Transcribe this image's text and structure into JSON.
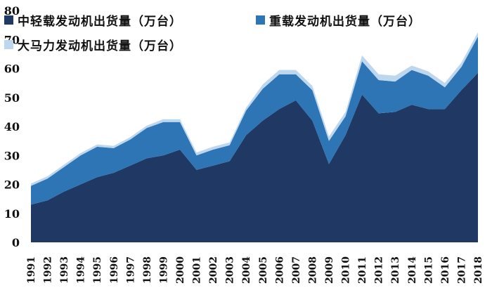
{
  "chart_data": {
    "type": "area",
    "stacked": true,
    "title": "",
    "xlabel": "",
    "ylabel": "",
    "ylim": [
      0,
      80
    ],
    "yticks": [
      0,
      10,
      20,
      30,
      40,
      50,
      60,
      70,
      80
    ],
    "grid": false,
    "legend_position": "top",
    "categories": [
      "1991",
      "1992",
      "1993",
      "1994",
      "1995",
      "1996",
      "1997",
      "1998",
      "1999",
      "2000",
      "2001",
      "2002",
      "2003",
      "2004",
      "2005",
      "2006",
      "2007",
      "2008",
      "2009",
      "2010",
      "2011",
      "2012",
      "2013",
      "2014",
      "2015",
      "2016",
      "2017",
      "2018"
    ],
    "series": [
      {
        "name": "中轻载发动机出货量（万台）",
        "color": "#1f3864",
        "values": [
          13,
          14.5,
          17.5,
          20,
          22.5,
          24,
          26.5,
          29,
          30,
          32,
          25,
          26.5,
          28,
          37,
          42,
          46,
          49,
          42,
          27,
          37,
          51,
          44.5,
          45,
          47.5,
          46,
          46,
          52.5,
          58.5
        ]
      },
      {
        "name": "重载发动机出货量（万台）",
        "color": "#2e75b6",
        "values": [
          6.5,
          7.5,
          8.5,
          10,
          10.5,
          8.5,
          9,
          10.5,
          11.5,
          9.5,
          5,
          5.5,
          5.5,
          8.5,
          11,
          12,
          9,
          10.5,
          8,
          6.5,
          11.5,
          11.5,
          10.5,
          12,
          11.5,
          7.5,
          8,
          12.5
        ]
      },
      {
        "name": "大马力发动机出货量（万台）",
        "color": "#bdd7ee",
        "values": [
          0.8,
          0.8,
          0.8,
          0.8,
          0.8,
          0.8,
          0.8,
          0.8,
          1,
          1,
          1,
          1,
          1,
          1,
          1.5,
          1.5,
          1.5,
          1.5,
          1.5,
          1.5,
          2,
          2,
          2,
          1.5,
          1.5,
          1.5,
          1.5,
          1.5
        ]
      }
    ]
  }
}
